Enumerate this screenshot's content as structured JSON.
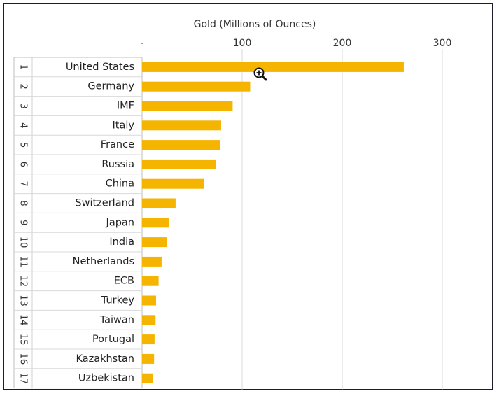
{
  "chart_data": {
    "type": "bar",
    "orientation": "horizontal",
    "title": "Gold (Millions of Ounces)",
    "x_tick_labels": [
      "-",
      "100",
      "200",
      "300"
    ],
    "x_ticks": [
      0,
      100,
      200,
      300
    ],
    "xlim": [
      0,
      340
    ],
    "grid": true,
    "bar_color": "#F5B400",
    "ranks": [
      "1",
      "2",
      "3",
      "4",
      "5",
      "6",
      "7",
      "8",
      "9",
      "10",
      "11",
      "12",
      "13",
      "14",
      "15",
      "16",
      "17"
    ],
    "categories": [
      "United States",
      "Germany",
      "IMF",
      "Italy",
      "France",
      "Russia",
      "China",
      "Switzerland",
      "Japan",
      "India",
      "Netherlands",
      "ECB",
      "Turkey",
      "Taiwan",
      "Portugal",
      "Kazakhstan",
      "Uzbekistan"
    ],
    "values": [
      261.5,
      108,
      90.5,
      79,
      78,
      74,
      62,
      33.5,
      27,
      24.5,
      19.5,
      16.5,
      14,
      13.5,
      12.5,
      12,
      11
    ]
  },
  "cursor": {
    "icon": "zoom-in-icon"
  }
}
